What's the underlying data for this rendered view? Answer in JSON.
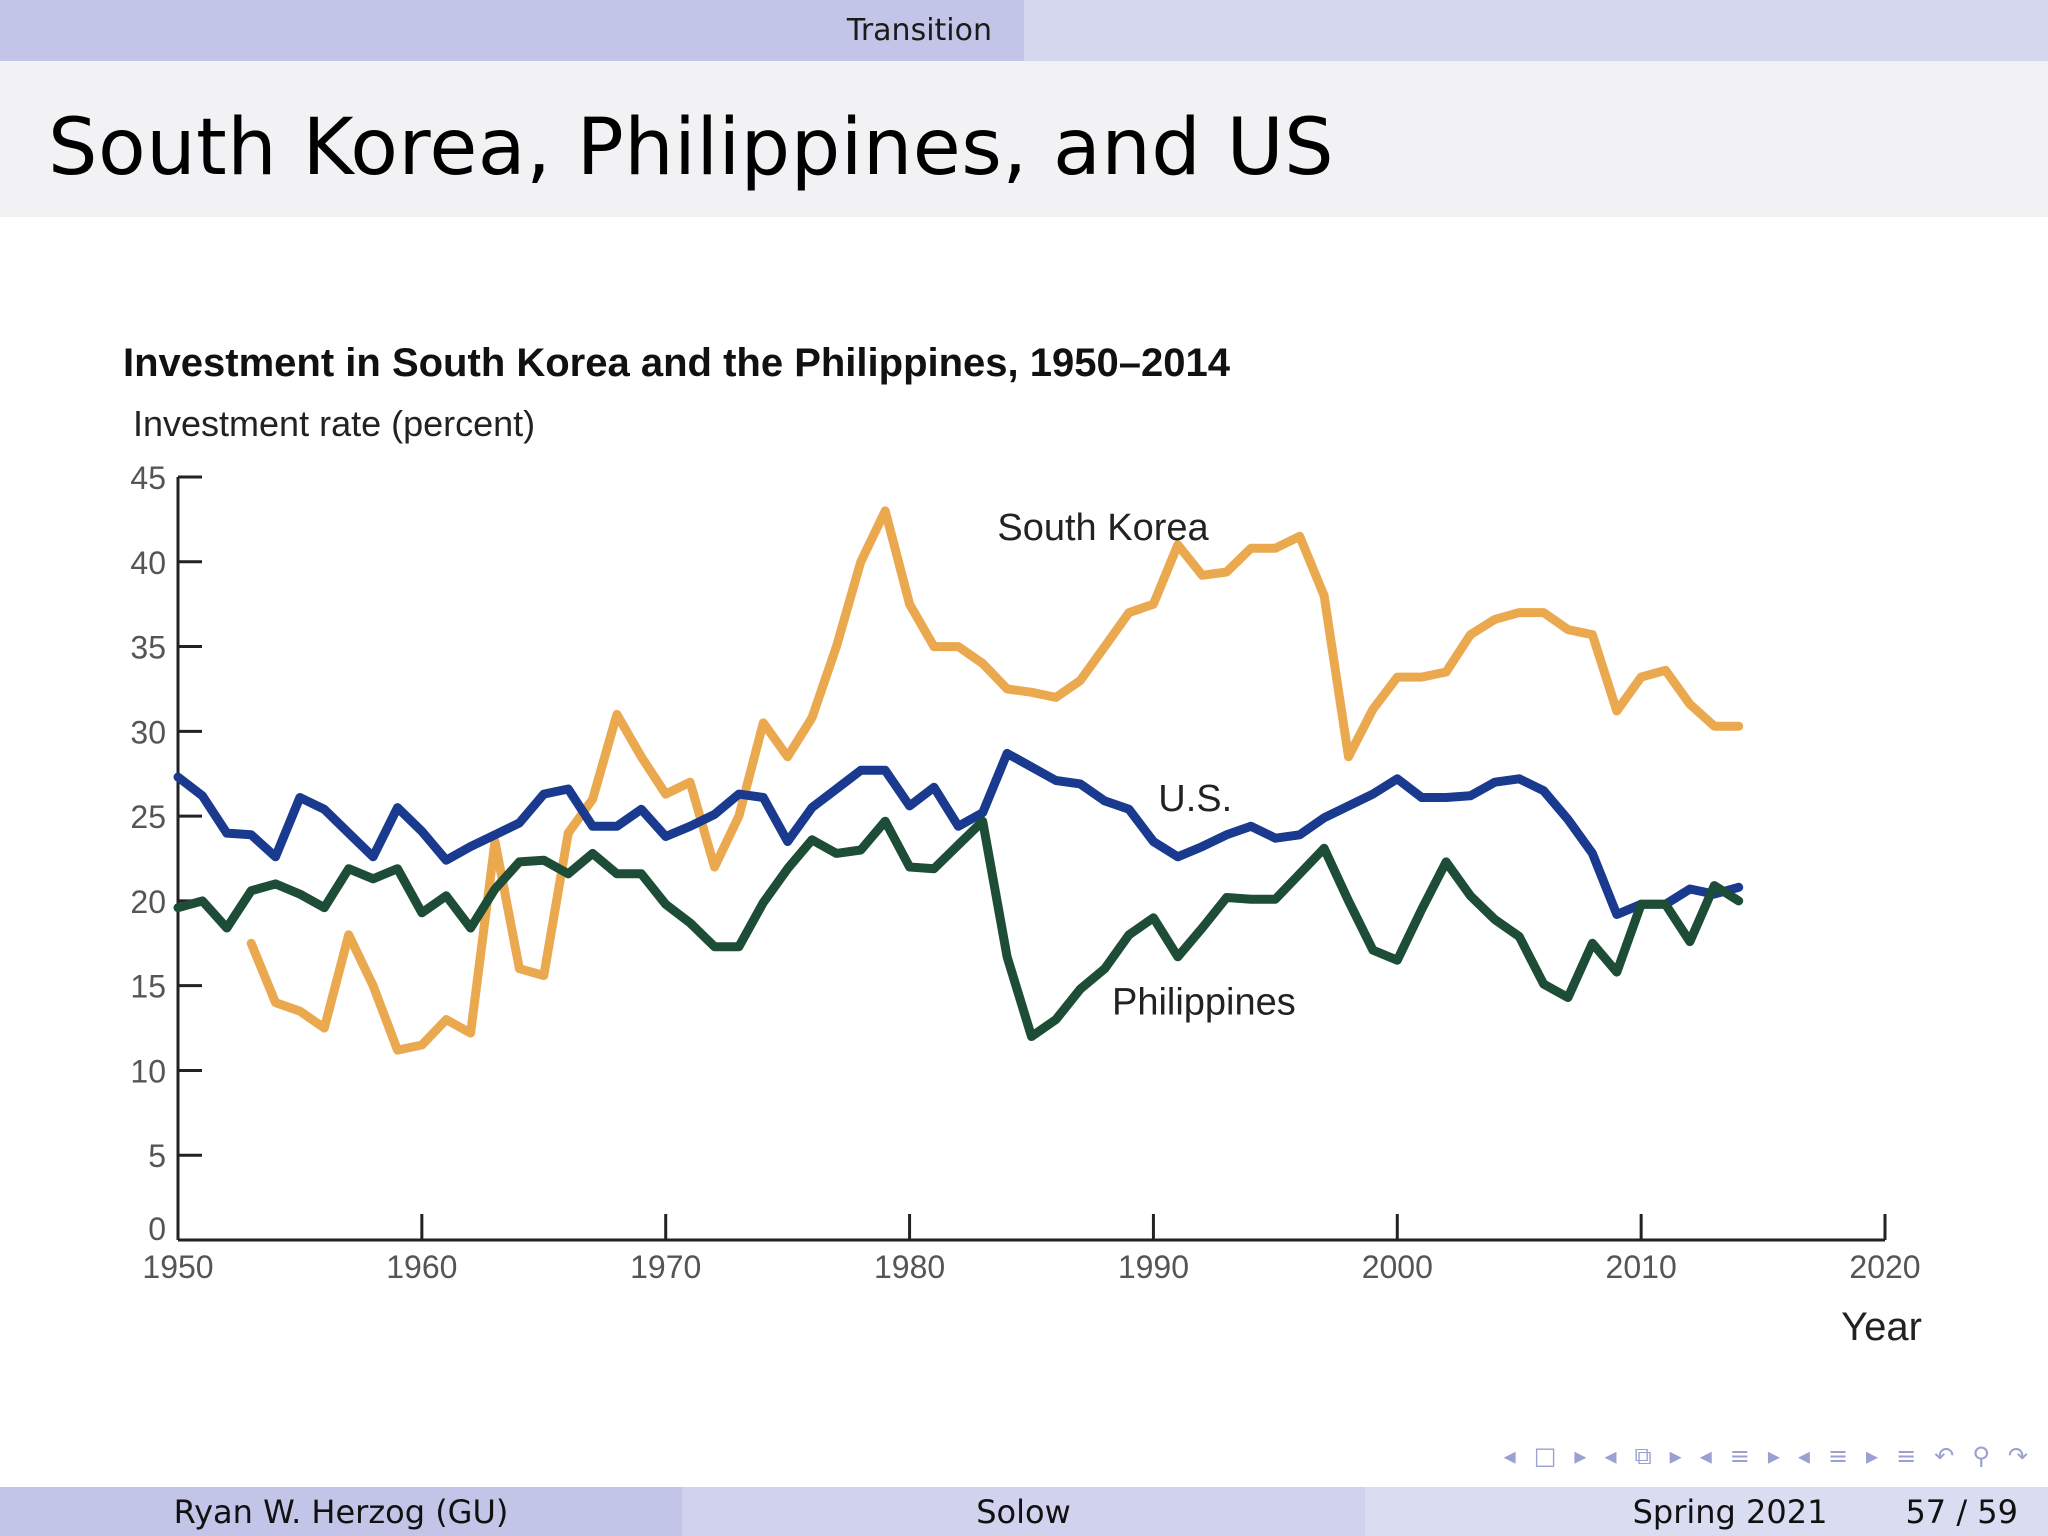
{
  "header": {
    "section": "Transition"
  },
  "slide": {
    "title": "South Korea, Philippines, and US"
  },
  "footer": {
    "author": "Ryan W. Herzog  (GU)",
    "topic": "Solow",
    "term": "Spring 2021",
    "page": "57 / 59"
  },
  "nav": {
    "icons": [
      "prev-frame-icon",
      "frame-icon",
      "next-frame-icon",
      "prev-subsection-icon",
      "subsection-icon",
      "next-subsection-icon",
      "prev-section-icon",
      "section-icon",
      "next-section-icon",
      "prev-slide-icon",
      "slide-icon",
      "next-slide-icon",
      "document-icon",
      "back-icon",
      "search-icon",
      "forward-icon"
    ],
    "glyphs": [
      "◂",
      "□",
      "▸",
      "◂",
      "⧉",
      "▸",
      "◂",
      "≡",
      "▸",
      "◂",
      "≡",
      "▸",
      "≡",
      "↶",
      "⚲",
      "↷"
    ]
  },
  "chart_data": {
    "type": "line",
    "title": "Investment in South Korea and the Philippines, 1950–2014",
    "ylabel": "Investment rate (percent)",
    "xlabel": "Year",
    "xlim": [
      1950,
      2020
    ],
    "ylim": [
      0,
      45
    ],
    "xticks": [
      1950,
      1960,
      1970,
      1980,
      1990,
      2000,
      2010,
      2020
    ],
    "yticks": [
      0,
      5,
      10,
      15,
      20,
      25,
      30,
      35,
      40,
      45
    ],
    "grid": false,
    "legend": "inline labels",
    "series": [
      {
        "name": "South Korea",
        "color": "#eba94f",
        "label_at": [
          1983.6,
          42
        ],
        "x": [
          1953,
          1954,
          1955,
          1956,
          1957,
          1958,
          1959,
          1960,
          1961,
          1962,
          1963,
          1964,
          1965,
          1966,
          1967,
          1968,
          1969,
          1970,
          1971,
          1972,
          1973,
          1974,
          1975,
          1976,
          1977,
          1978,
          1979,
          1980,
          1981,
          1982,
          1983,
          1984,
          1985,
          1986,
          1987,
          1988,
          1989,
          1990,
          1991,
          1992,
          1993,
          1994,
          1995,
          1996,
          1997,
          1998,
          1999,
          2000,
          2001,
          2002,
          2003,
          2004,
          2005,
          2006,
          2007,
          2008,
          2009,
          2010,
          2011,
          2012,
          2013,
          2014
        ],
        "y": [
          17.5,
          14,
          13.5,
          12.5,
          18,
          15,
          11.2,
          11.5,
          13,
          12.2,
          23.5,
          16,
          15.6,
          24,
          26,
          31,
          28.5,
          26.3,
          27,
          22,
          25,
          30.5,
          28.5,
          30.8,
          35,
          40,
          43,
          37.5,
          35,
          35,
          34,
          32.5,
          32.3,
          32,
          33,
          35,
          37,
          37.5,
          41,
          39.2,
          39.4,
          40.8,
          40.8,
          41.5,
          38,
          28.5,
          31.3,
          33.2,
          33.2,
          33.5,
          35.7,
          36.6,
          37,
          37,
          36,
          35.7,
          31.2,
          33.2,
          33.6,
          31.6,
          30.3,
          30.3
        ]
      },
      {
        "name": "U.S.",
        "color": "#1a3a8f",
        "label_at": [
          1990.2,
          26
        ],
        "x": [
          1950,
          1951,
          1952,
          1953,
          1954,
          1955,
          1956,
          1957,
          1958,
          1959,
          1960,
          1961,
          1962,
          1963,
          1964,
          1965,
          1966,
          1967,
          1968,
          1969,
          1970,
          1971,
          1972,
          1973,
          1974,
          1975,
          1976,
          1977,
          1978,
          1979,
          1980,
          1981,
          1982,
          1983,
          1984,
          1985,
          1986,
          1987,
          1988,
          1989,
          1990,
          1991,
          1992,
          1993,
          1994,
          1995,
          1996,
          1997,
          1998,
          1999,
          2000,
          2001,
          2002,
          2003,
          2004,
          2005,
          2006,
          2007,
          2008,
          2009,
          2010,
          2011,
          2012,
          2013,
          2014
        ],
        "y": [
          27.3,
          26.2,
          24,
          23.9,
          22.6,
          26.1,
          25.4,
          24,
          22.6,
          25.5,
          24.1,
          22.4,
          23.2,
          23.9,
          24.6,
          26.3,
          26.6,
          24.4,
          24.4,
          25.4,
          23.8,
          24.4,
          25.1,
          26.3,
          26.1,
          23.5,
          25.5,
          26.6,
          27.7,
          27.7,
          25.6,
          26.7,
          24.4,
          25.2,
          28.7,
          27.9,
          27.1,
          26.9,
          25.9,
          25.4,
          23.5,
          22.6,
          23.2,
          23.9,
          24.4,
          23.7,
          23.9,
          24.9,
          25.6,
          26.3,
          27.2,
          26.1,
          26.1,
          26.2,
          27,
          27.2,
          26.5,
          24.8,
          22.8,
          19.2,
          19.8,
          19.8,
          20.7,
          20.4,
          20.8
        ]
      },
      {
        "name": "Philippines",
        "color": "#1d4d36",
        "label_at": [
          1988.3,
          14
        ],
        "x": [
          1950,
          1951,
          1952,
          1953,
          1954,
          1955,
          1956,
          1957,
          1958,
          1959,
          1960,
          1961,
          1962,
          1963,
          1964,
          1965,
          1966,
          1967,
          1968,
          1969,
          1970,
          1971,
          1972,
          1973,
          1974,
          1975,
          1976,
          1977,
          1978,
          1979,
          1980,
          1981,
          1982,
          1983,
          1984,
          1985,
          1986,
          1987,
          1988,
          1989,
          1990,
          1991,
          1992,
          1993,
          1994,
          1995,
          1996,
          1997,
          1998,
          1999,
          2000,
          2001,
          2002,
          2003,
          2004,
          2005,
          2006,
          2007,
          2008,
          2009,
          2010,
          2011,
          2012,
          2013,
          2014
        ],
        "y": [
          19.6,
          20,
          18.4,
          20.6,
          21,
          20.4,
          19.6,
          21.9,
          21.3,
          21.9,
          19.3,
          20.3,
          18.4,
          20.7,
          22.3,
          22.4,
          21.6,
          22.8,
          21.6,
          21.6,
          19.8,
          18.7,
          17.3,
          17.3,
          19.9,
          21.9,
          23.6,
          22.8,
          23,
          24.7,
          22,
          21.9,
          23.3,
          24.7,
          16.7,
          12,
          13,
          14.8,
          16,
          18,
          19,
          16.7,
          18.4,
          20.2,
          20.1,
          20.1,
          21.6,
          23.1,
          20,
          17.1,
          16.5,
          19.5,
          22.3,
          20.3,
          18.9,
          17.9,
          15.1,
          14.3,
          17.5,
          15.8,
          19.8,
          19.8,
          17.6,
          20.9,
          20
        ]
      }
    ]
  }
}
